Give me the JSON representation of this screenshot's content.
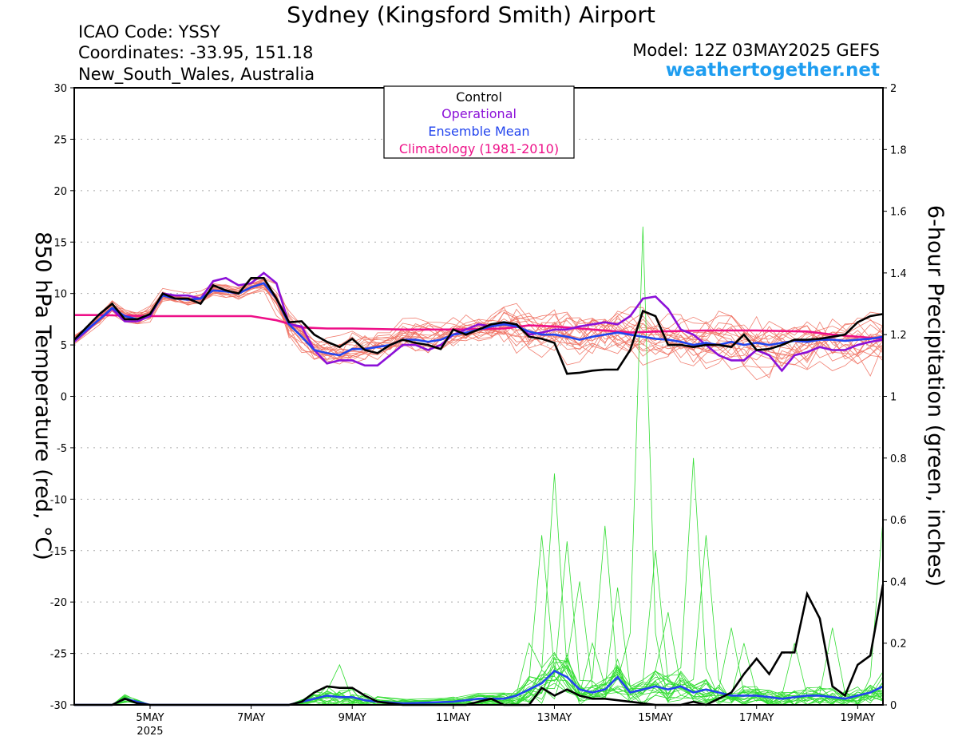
{
  "header": {
    "title": "Sydney (Kingsford Smith) Airport",
    "icao": "ICAO Code: YSSY",
    "coordinates": "Coordinates: -33.95, 151.18",
    "region": "New_South_Wales, Australia",
    "model": "Model: 12Z 03MAY2025 GEFS",
    "website": "weathertogether.net"
  },
  "colors": {
    "control": "#000000",
    "operational": "#8b10d8",
    "ensemble_mean": "#2244ee",
    "climatology": "#ee1088",
    "temp_members": "#f07060",
    "precip_members": "#33dd33",
    "website": "#1e9df0"
  },
  "chart_data": {
    "type": "line",
    "left_axis_label": "850 hPa Temperature (red, °C)",
    "right_axis_label": "6-hour Precipitation (green, inches)",
    "y_left_range": [
      -30,
      30
    ],
    "y_left_ticks": [
      "30",
      "25",
      "20",
      "15",
      "10",
      "5",
      "0",
      "-5",
      "-10",
      "-15",
      "-20",
      "-25",
      "-30"
    ],
    "y_right_range": [
      0,
      2
    ],
    "y_right_ticks": [
      "2",
      "1.8",
      "1.6",
      "1.4",
      "1.2",
      "1",
      "0.8",
      "0.6",
      "0.4",
      "0.2",
      "0"
    ],
    "x_range_days": [
      3.5,
      19.5
    ],
    "x_ticks": [
      {
        "label": "5MAY",
        "day": 5,
        "sub": "2025"
      },
      {
        "label": "7MAY",
        "day": 7
      },
      {
        "label": "9MAY",
        "day": 9
      },
      {
        "label": "11MAY",
        "day": 11
      },
      {
        "label": "13MAY",
        "day": 13
      },
      {
        "label": "15MAY",
        "day": 15
      },
      {
        "label": "17MAY",
        "day": 17
      },
      {
        "label": "19MAY",
        "day": 19
      }
    ],
    "grid": "dotted horizontal",
    "legend": {
      "position": "top-center",
      "entries": [
        "Control",
        "Operational",
        "Ensemble Mean",
        "Climatology (1981-2010)"
      ]
    },
    "temperature": {
      "control": [
        [
          3.5,
          5.5
        ],
        [
          4.0,
          8.0
        ],
        [
          4.25,
          9.0
        ],
        [
          4.5,
          7.5
        ],
        [
          4.75,
          7.5
        ],
        [
          5.0,
          8.0
        ],
        [
          5.25,
          10.0
        ],
        [
          5.5,
          9.5
        ],
        [
          5.75,
          9.5
        ],
        [
          6.0,
          9.0
        ],
        [
          6.25,
          10.8
        ],
        [
          6.5,
          10.3
        ],
        [
          6.75,
          10.0
        ],
        [
          7.0,
          11.5
        ],
        [
          7.25,
          11.5
        ],
        [
          7.5,
          9.5
        ],
        [
          7.75,
          7.2
        ],
        [
          8.0,
          7.3
        ],
        [
          8.25,
          6.0
        ],
        [
          8.5,
          5.3
        ],
        [
          8.75,
          4.8
        ],
        [
          9.0,
          5.6
        ],
        [
          9.25,
          4.5
        ],
        [
          9.5,
          4.2
        ],
        [
          9.75,
          5.0
        ],
        [
          10.0,
          5.5
        ],
        [
          10.25,
          5.2
        ],
        [
          10.5,
          5.0
        ],
        [
          10.75,
          4.6
        ],
        [
          11.0,
          6.5
        ],
        [
          11.25,
          6.0
        ],
        [
          11.5,
          6.5
        ],
        [
          11.75,
          7.0
        ],
        [
          12.0,
          7.2
        ],
        [
          12.25,
          7.0
        ],
        [
          12.5,
          5.8
        ],
        [
          12.75,
          5.6
        ],
        [
          13.0,
          5.2
        ],
        [
          13.25,
          2.2
        ],
        [
          13.5,
          2.3
        ],
        [
          13.75,
          2.5
        ],
        [
          14.0,
          2.6
        ],
        [
          14.25,
          2.6
        ],
        [
          14.5,
          4.5
        ],
        [
          14.75,
          8.3
        ],
        [
          15.0,
          7.8
        ],
        [
          15.25,
          5.0
        ],
        [
          15.5,
          5.0
        ],
        [
          15.75,
          4.8
        ],
        [
          16.0,
          5.0
        ],
        [
          16.25,
          5.0
        ],
        [
          16.5,
          4.8
        ],
        [
          16.75,
          6.0
        ],
        [
          17.0,
          4.5
        ],
        [
          17.25,
          4.6
        ],
        [
          17.5,
          5.0
        ],
        [
          17.75,
          5.5
        ],
        [
          18.0,
          5.5
        ],
        [
          18.25,
          5.6
        ],
        [
          18.5,
          5.8
        ],
        [
          18.75,
          6.0
        ],
        [
          19.0,
          7.2
        ],
        [
          19.25,
          7.8
        ],
        [
          19.5,
          8.0
        ]
      ],
      "operational": [
        [
          3.5,
          5.3
        ],
        [
          4.0,
          7.5
        ],
        [
          4.25,
          8.5
        ],
        [
          4.5,
          7.3
        ],
        [
          4.75,
          7.3
        ],
        [
          5.0,
          7.8
        ],
        [
          5.25,
          10.0
        ],
        [
          5.5,
          9.8
        ],
        [
          5.75,
          9.8
        ],
        [
          6.0,
          9.5
        ],
        [
          6.25,
          11.2
        ],
        [
          6.5,
          11.5
        ],
        [
          6.75,
          10.8
        ],
        [
          7.0,
          11.0
        ],
        [
          7.25,
          12.0
        ],
        [
          7.5,
          11.0
        ],
        [
          7.75,
          7.0
        ],
        [
          8.0,
          6.8
        ],
        [
          8.25,
          4.5
        ],
        [
          8.5,
          3.2
        ],
        [
          8.75,
          3.5
        ],
        [
          9.0,
          3.5
        ],
        [
          9.25,
          3.0
        ],
        [
          9.5,
          3.0
        ],
        [
          9.75,
          4.0
        ],
        [
          10.0,
          5.0
        ],
        [
          10.25,
          5.0
        ],
        [
          10.5,
          4.5
        ],
        [
          10.75,
          5.0
        ],
        [
          11.0,
          6.0
        ],
        [
          11.25,
          6.5
        ],
        [
          11.5,
          7.0
        ],
        [
          11.75,
          6.8
        ],
        [
          12.0,
          7.0
        ],
        [
          12.25,
          7.0
        ],
        [
          12.5,
          6.0
        ],
        [
          12.75,
          6.2
        ],
        [
          13.0,
          6.5
        ],
        [
          13.25,
          6.5
        ],
        [
          13.5,
          6.8
        ],
        [
          13.75,
          7.0
        ],
        [
          14.0,
          7.2
        ],
        [
          14.25,
          7.0
        ],
        [
          14.5,
          7.8
        ],
        [
          14.75,
          9.5
        ],
        [
          15.0,
          9.7
        ],
        [
          15.25,
          8.5
        ],
        [
          15.5,
          6.5
        ],
        [
          15.75,
          6.0
        ],
        [
          16.0,
          5.0
        ],
        [
          16.25,
          4.0
        ],
        [
          16.5,
          3.5
        ],
        [
          16.75,
          3.5
        ],
        [
          17.0,
          4.5
        ],
        [
          17.25,
          4.0
        ],
        [
          17.5,
          2.5
        ],
        [
          17.75,
          4.0
        ],
        [
          18.0,
          4.3
        ],
        [
          18.25,
          4.8
        ],
        [
          18.5,
          4.5
        ],
        [
          18.75,
          4.5
        ],
        [
          19.0,
          5.0
        ],
        [
          19.25,
          5.3
        ],
        [
          19.5,
          5.5
        ]
      ],
      "ensemble_mean": [
        [
          3.5,
          5.5
        ],
        [
          4.0,
          7.5
        ],
        [
          4.25,
          8.6
        ],
        [
          4.5,
          7.8
        ],
        [
          4.75,
          7.5
        ],
        [
          5.0,
          8.0
        ],
        [
          5.25,
          9.8
        ],
        [
          5.5,
          9.5
        ],
        [
          5.75,
          9.4
        ],
        [
          6.0,
          9.5
        ],
        [
          6.25,
          10.3
        ],
        [
          6.5,
          10.2
        ],
        [
          6.75,
          10.0
        ],
        [
          7.0,
          10.6
        ],
        [
          7.25,
          11.0
        ],
        [
          7.5,
          9.5
        ],
        [
          7.75,
          7.0
        ],
        [
          8.0,
          5.8
        ],
        [
          8.25,
          4.5
        ],
        [
          8.5,
          4.2
        ],
        [
          8.75,
          4.0
        ],
        [
          9.0,
          4.6
        ],
        [
          9.25,
          4.6
        ],
        [
          9.5,
          4.8
        ],
        [
          9.75,
          5.0
        ],
        [
          10.0,
          5.5
        ],
        [
          10.25,
          5.5
        ],
        [
          10.5,
          5.3
        ],
        [
          10.75,
          5.5
        ],
        [
          11.0,
          6.0
        ],
        [
          11.25,
          6.2
        ],
        [
          11.5,
          6.5
        ],
        [
          11.75,
          6.8
        ],
        [
          12.0,
          7.0
        ],
        [
          12.25,
          6.8
        ],
        [
          12.5,
          6.3
        ],
        [
          12.75,
          6.0
        ],
        [
          13.0,
          6.0
        ],
        [
          13.25,
          5.8
        ],
        [
          13.5,
          5.5
        ],
        [
          13.75,
          5.8
        ],
        [
          14.0,
          6.0
        ],
        [
          14.25,
          6.2
        ],
        [
          14.5,
          6.0
        ],
        [
          14.75,
          5.8
        ],
        [
          15.0,
          5.6
        ],
        [
          15.25,
          5.5
        ],
        [
          15.5,
          5.3
        ],
        [
          15.75,
          5.0
        ],
        [
          16.0,
          5.2
        ],
        [
          16.25,
          5.0
        ],
        [
          16.5,
          5.3
        ],
        [
          16.75,
          5.0
        ],
        [
          17.0,
          5.2
        ],
        [
          17.25,
          5.0
        ],
        [
          17.5,
          5.2
        ],
        [
          17.75,
          5.4
        ],
        [
          18.0,
          5.3
        ],
        [
          18.25,
          5.5
        ],
        [
          18.5,
          5.5
        ],
        [
          18.75,
          5.4
        ],
        [
          19.0,
          5.5
        ],
        [
          19.25,
          5.6
        ],
        [
          19.5,
          5.8
        ]
      ],
      "climatology": [
        [
          3.5,
          7.9
        ],
        [
          4.0,
          7.9
        ],
        [
          5.0,
          7.8
        ],
        [
          6.0,
          7.8
        ],
        [
          7.0,
          7.8
        ],
        [
          7.5,
          7.4
        ],
        [
          8.0,
          6.7
        ],
        [
          8.5,
          6.6
        ],
        [
          9.0,
          6.6
        ],
        [
          10.0,
          6.5
        ],
        [
          11.0,
          6.5
        ],
        [
          12.0,
          6.6
        ],
        [
          12.5,
          6.9
        ],
        [
          13.0,
          6.8
        ],
        [
          13.5,
          6.6
        ],
        [
          14.0,
          6.4
        ],
        [
          14.5,
          6.2
        ],
        [
          15.0,
          6.3
        ],
        [
          16.0,
          6.4
        ],
        [
          17.0,
          6.4
        ],
        [
          18.0,
          6.3
        ],
        [
          18.5,
          6.0
        ],
        [
          19.0,
          5.8
        ],
        [
          19.5,
          5.6
        ]
      ]
    },
    "precipitation": {
      "control": [
        [
          3.5,
          0
        ],
        [
          4.25,
          0
        ],
        [
          4.5,
          0.02
        ],
        [
          4.75,
          0.005
        ],
        [
          5.0,
          0
        ],
        [
          7.75,
          0
        ],
        [
          8.0,
          0.01
        ],
        [
          8.25,
          0.04
        ],
        [
          8.5,
          0.06
        ],
        [
          8.75,
          0.055
        ],
        [
          9.0,
          0.055
        ],
        [
          9.25,
          0.03
        ],
        [
          9.5,
          0.01
        ],
        [
          10.0,
          0
        ],
        [
          11.25,
          0
        ],
        [
          11.5,
          0.01
        ],
        [
          11.75,
          0.02
        ],
        [
          12.0,
          0
        ],
        [
          12.5,
          0
        ],
        [
          12.75,
          0.055
        ],
        [
          13.0,
          0.03
        ],
        [
          13.25,
          0.05
        ],
        [
          13.5,
          0.03
        ],
        [
          13.75,
          0.02
        ],
        [
          14.0,
          0.02
        ],
        [
          14.5,
          0.01
        ],
        [
          14.75,
          0.005
        ],
        [
          15.0,
          0
        ],
        [
          15.5,
          0
        ],
        [
          15.75,
          0.01
        ],
        [
          16.0,
          0
        ],
        [
          16.25,
          0.02
        ],
        [
          16.5,
          0.04
        ],
        [
          16.75,
          0.1
        ],
        [
          17.0,
          0.15
        ],
        [
          17.25,
          0.1
        ],
        [
          17.5,
          0.17
        ],
        [
          17.75,
          0.17
        ],
        [
          18.0,
          0.36
        ],
        [
          18.25,
          0.28
        ],
        [
          18.5,
          0.06
        ],
        [
          18.75,
          0.03
        ],
        [
          19.0,
          0.13
        ],
        [
          19.25,
          0.16
        ],
        [
          19.5,
          0.39
        ]
      ],
      "ensemble_mean": [
        [
          3.5,
          0
        ],
        [
          4.25,
          0
        ],
        [
          4.5,
          0.02
        ],
        [
          4.75,
          0.01
        ],
        [
          5.0,
          0
        ],
        [
          7.75,
          0
        ],
        [
          8.0,
          0.01
        ],
        [
          8.25,
          0.02
        ],
        [
          8.5,
          0.03
        ],
        [
          8.75,
          0.025
        ],
        [
          9.0,
          0.025
        ],
        [
          9.25,
          0.015
        ],
        [
          9.5,
          0.01
        ],
        [
          10.0,
          0.005
        ],
        [
          11.0,
          0.01
        ],
        [
          11.5,
          0.02
        ],
        [
          12.0,
          0.02
        ],
        [
          12.25,
          0.03
        ],
        [
          12.5,
          0.05
        ],
        [
          12.75,
          0.07
        ],
        [
          13.0,
          0.11
        ],
        [
          13.25,
          0.09
        ],
        [
          13.5,
          0.05
        ],
        [
          13.75,
          0.04
        ],
        [
          14.0,
          0.05
        ],
        [
          14.25,
          0.09
        ],
        [
          14.5,
          0.04
        ],
        [
          14.75,
          0.05
        ],
        [
          15.0,
          0.06
        ],
        [
          15.25,
          0.05
        ],
        [
          15.5,
          0.06
        ],
        [
          15.75,
          0.04
        ],
        [
          16.0,
          0.05
        ],
        [
          16.25,
          0.04
        ],
        [
          16.5,
          0.03
        ],
        [
          16.75,
          0.03
        ],
        [
          17.0,
          0.03
        ],
        [
          17.25,
          0.025
        ],
        [
          17.5,
          0.02
        ],
        [
          17.75,
          0.025
        ],
        [
          18.0,
          0.03
        ],
        [
          18.25,
          0.03
        ],
        [
          18.5,
          0.025
        ],
        [
          18.75,
          0.02
        ],
        [
          19.0,
          0.03
        ],
        [
          19.25,
          0.04
        ],
        [
          19.5,
          0.06
        ]
      ]
    }
  }
}
